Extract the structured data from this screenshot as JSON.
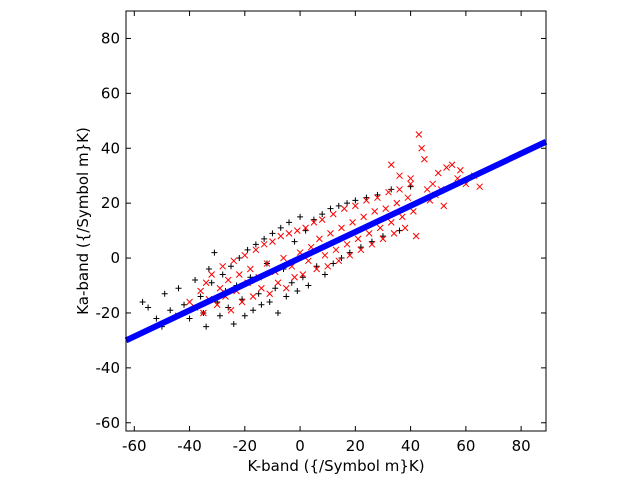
{
  "chart_data": {
    "type": "scatter",
    "xlabel": "K-band ({/Symbol m}K)",
    "ylabel": "Ka-band ({/Symbol m}K)",
    "xlim": [
      -63,
      89
    ],
    "ylim": [
      -63,
      90
    ],
    "xticks": [
      -60,
      -40,
      -20,
      0,
      20,
      40,
      60,
      80
    ],
    "yticks": [
      -60,
      -40,
      -20,
      0,
      20,
      40,
      60,
      80
    ],
    "grid": false,
    "legend": "none",
    "fit_line": {
      "slope": 0.476,
      "intercept": 0.0,
      "x_range": [
        -63,
        89
      ],
      "color": "#0000ff"
    },
    "series": [
      {
        "marker": "plus",
        "color": "#000000",
        "points": [
          [
            -57,
            -16
          ],
          [
            -55,
            -18
          ],
          [
            -52,
            -22
          ],
          [
            -50,
            -25
          ],
          [
            -49,
            -13
          ],
          [
            -47,
            -19
          ],
          [
            -45,
            -21
          ],
          [
            -44,
            -11
          ],
          [
            -42,
            -17
          ],
          [
            -40,
            -22
          ],
          [
            -38,
            -8
          ],
          [
            -36,
            -14
          ],
          [
            -35,
            -20
          ],
          [
            -34,
            -25
          ],
          [
            -33,
            -4
          ],
          [
            -32,
            -9
          ],
          [
            -31,
            2
          ],
          [
            -30,
            -16
          ],
          [
            -29,
            -21
          ],
          [
            -28,
            -6
          ],
          [
            -27,
            -12
          ],
          [
            -26,
            -18
          ],
          [
            -25,
            -3
          ],
          [
            -24,
            -24
          ],
          [
            -23,
            -10
          ],
          [
            -22,
            0
          ],
          [
            -21,
            -15
          ],
          [
            -20,
            -21
          ],
          [
            -19,
            3
          ],
          [
            -18,
            -7
          ],
          [
            -17,
            -19
          ],
          [
            -16,
            5
          ],
          [
            -15,
            -13
          ],
          [
            -14,
            -17
          ],
          [
            -13,
            7
          ],
          [
            -12,
            -2
          ],
          [
            -11,
            -16
          ],
          [
            -10,
            9
          ],
          [
            -9,
            -11
          ],
          [
            -8,
            -20
          ],
          [
            -7,
            11
          ],
          [
            -6,
            -4
          ],
          [
            -5,
            -14
          ],
          [
            -4,
            13
          ],
          [
            -3,
            -9
          ],
          [
            -2,
            6
          ],
          [
            -1,
            -12
          ],
          [
            0,
            15
          ],
          [
            1,
            -7
          ],
          [
            2,
            10
          ],
          [
            3,
            -10
          ],
          [
            5,
            14
          ],
          [
            6,
            -3
          ],
          [
            8,
            16
          ],
          [
            9,
            -6
          ],
          [
            11,
            18
          ],
          [
            12,
            -2
          ],
          [
            14,
            19
          ],
          [
            15,
            0
          ],
          [
            17,
            20
          ],
          [
            18,
            2
          ],
          [
            20,
            21
          ],
          [
            22,
            4
          ],
          [
            24,
            22
          ],
          [
            26,
            6
          ],
          [
            28,
            23
          ],
          [
            30,
            8
          ],
          [
            33,
            25
          ],
          [
            36,
            10
          ],
          [
            40,
            26
          ]
        ]
      },
      {
        "marker": "x",
        "color": "#ff0000",
        "points": [
          [
            -40,
            -16
          ],
          [
            -38,
            -18
          ],
          [
            -36,
            -12
          ],
          [
            -35,
            -20
          ],
          [
            -34,
            -9
          ],
          [
            -33,
            -15
          ],
          [
            -32,
            -6
          ],
          [
            -30,
            -17
          ],
          [
            -29,
            -11
          ],
          [
            -28,
            -3
          ],
          [
            -27,
            -14
          ],
          [
            -26,
            -8
          ],
          [
            -25,
            -19
          ],
          [
            -24,
            -1
          ],
          [
            -23,
            -12
          ],
          [
            -22,
            -6
          ],
          [
            -21,
            -16
          ],
          [
            -20,
            1
          ],
          [
            -19,
            -9
          ],
          [
            -18,
            -4
          ],
          [
            -17,
            -14
          ],
          [
            -16,
            3
          ],
          [
            -15,
            -7
          ],
          [
            -14,
            -11
          ],
          [
            -13,
            5
          ],
          [
            -12,
            -2
          ],
          [
            -11,
            -13
          ],
          [
            -10,
            6
          ],
          [
            -9,
            -5
          ],
          [
            -8,
            -9
          ],
          [
            -7,
            8
          ],
          [
            -6,
            0
          ],
          [
            -5,
            -11
          ],
          [
            -4,
            9
          ],
          [
            -3,
            -3
          ],
          [
            -2,
            -7
          ],
          [
            -1,
            10
          ],
          [
            0,
            2
          ],
          [
            1,
            -6
          ],
          [
            2,
            11
          ],
          [
            3,
            -1
          ],
          [
            4,
            4
          ],
          [
            5,
            13
          ],
          [
            6,
            -4
          ],
          [
            7,
            7
          ],
          [
            8,
            14
          ],
          [
            9,
            1
          ],
          [
            10,
            -3
          ],
          [
            11,
            9
          ],
          [
            12,
            16
          ],
          [
            13,
            3
          ],
          [
            14,
            -1
          ],
          [
            15,
            11
          ],
          [
            16,
            18
          ],
          [
            17,
            5
          ],
          [
            18,
            1
          ],
          [
            19,
            13
          ],
          [
            20,
            19
          ],
          [
            21,
            7
          ],
          [
            22,
            3
          ],
          [
            23,
            15
          ],
          [
            24,
            21
          ],
          [
            25,
            9
          ],
          [
            26,
            5
          ],
          [
            27,
            17
          ],
          [
            28,
            22
          ],
          [
            29,
            11
          ],
          [
            30,
            7
          ],
          [
            31,
            18
          ],
          [
            32,
            24
          ],
          [
            33,
            13
          ],
          [
            34,
            9
          ],
          [
            35,
            20
          ],
          [
            36,
            25
          ],
          [
            37,
            15
          ],
          [
            38,
            11
          ],
          [
            39,
            22
          ],
          [
            40,
            27
          ],
          [
            41,
            17
          ],
          [
            42,
            8
          ],
          [
            43,
            45
          ],
          [
            44,
            40
          ],
          [
            45,
            36
          ],
          [
            46,
            25
          ],
          [
            47,
            21
          ],
          [
            49,
            23
          ],
          [
            50,
            31
          ],
          [
            52,
            19
          ],
          [
            53,
            33
          ],
          [
            55,
            34
          ],
          [
            57,
            29
          ],
          [
            60,
            27
          ],
          [
            63,
            30
          ],
          [
            65,
            26
          ],
          [
            33,
            34
          ],
          [
            40,
            29
          ],
          [
            36,
            30
          ],
          [
            48,
            27
          ],
          [
            51,
            25
          ],
          [
            58,
            32
          ]
        ]
      }
    ]
  }
}
